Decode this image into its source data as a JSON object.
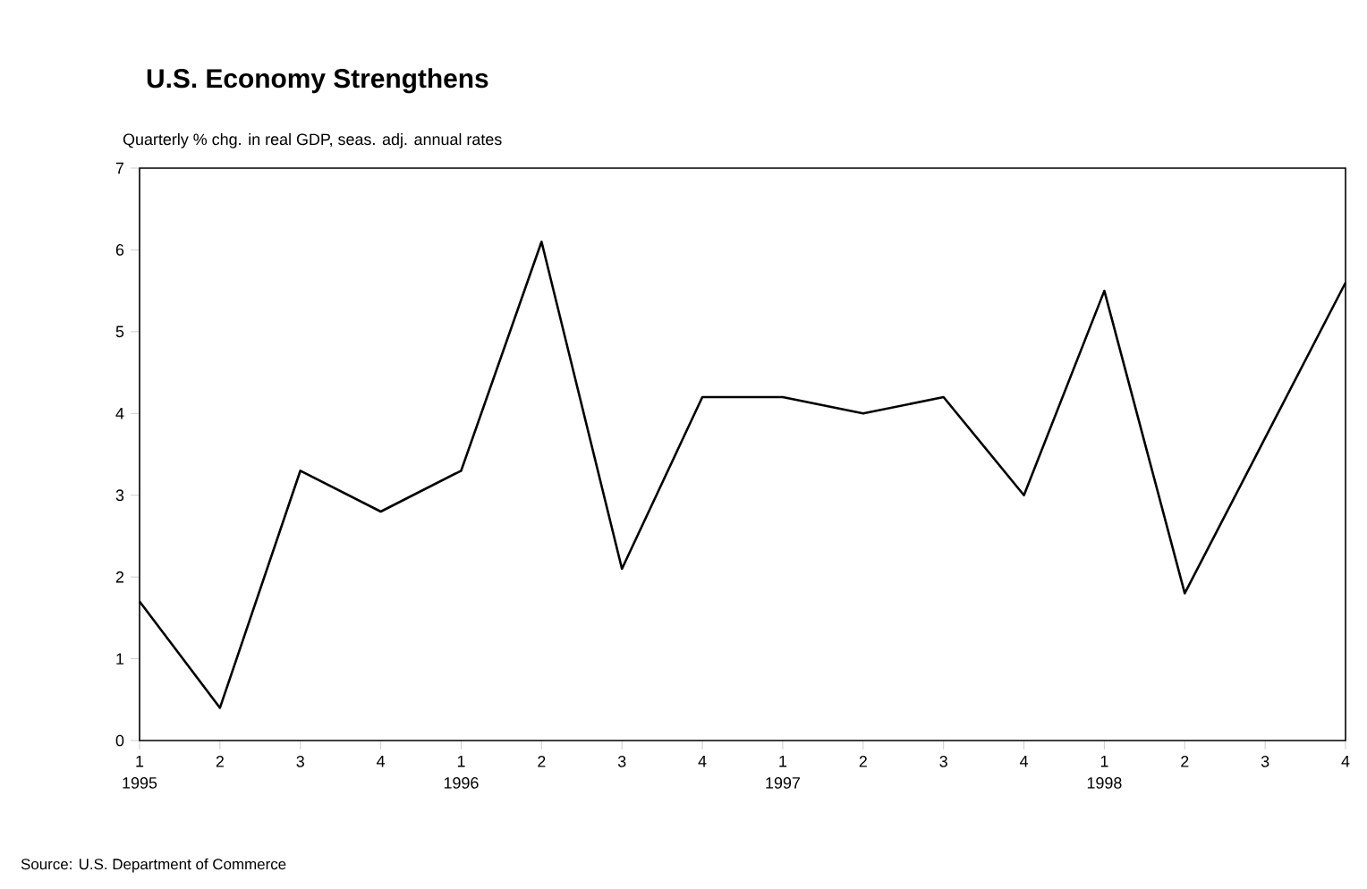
{
  "chart_data": {
    "type": "line",
    "title": "U.S. Economy Strengthens",
    "subtitle": "Quarterly % chg. in real GDP, seas. adj. annual rates",
    "categories": [
      "1",
      "2",
      "3",
      "4",
      "1",
      "2",
      "3",
      "4",
      "1",
      "2",
      "3",
      "4",
      "1",
      "2",
      "3",
      "4"
    ],
    "values": [
      1.7,
      0.4,
      3.3,
      2.8,
      3.3,
      6.1,
      2.1,
      4.2,
      4.2,
      4.0,
      4.2,
      3.0,
      5.5,
      1.8,
      3.7,
      5.6
    ],
    "color": "#000000",
    "ylim": [
      0,
      7
    ],
    "yticks": [
      0,
      1,
      2,
      3,
      4,
      5,
      6,
      7
    ],
    "grid": false,
    "marker": "none",
    "line_style": "solid",
    "annotations": [
      "1995",
      "1996",
      "1997",
      "1998",
      "Source: U.S. Department of Commerce"
    ]
  }
}
